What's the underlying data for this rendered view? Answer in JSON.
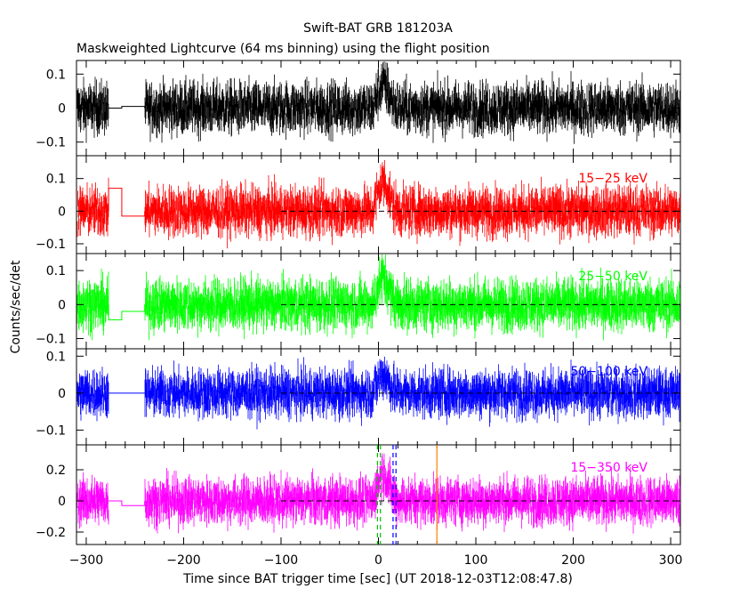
{
  "title": "Swift-BAT GRB 181203A",
  "subtitle": "Maskweighted Lightcurve (64 ms binning) using the flight position",
  "xlabel": "Time since BAT trigger time [sec] (UT 2018-12-03T12:08:47.8)",
  "ylabel": "Counts/sec/det",
  "colors": {
    "panel1": "#000000",
    "panel2": "#ff0000",
    "panel3": "#00ff00",
    "panel4": "#0000ff",
    "panel5": "#ff00ff",
    "marker_green": "#00c000",
    "marker_blue": "#0000ff",
    "marker_orange": "#ff8000"
  },
  "chart_data": {
    "type": "line",
    "xlim": [
      -310,
      310
    ],
    "xticks": [
      -300,
      -200,
      -100,
      0,
      100,
      200,
      300
    ],
    "xtick_labels": [
      "−300",
      "−200",
      "−100",
      "0",
      "100",
      "200",
      "300"
    ],
    "data_gap": [
      -277,
      -240
    ],
    "dashed_zero_from": -100,
    "panels": [
      {
        "name": "",
        "color": "#000000",
        "ylim": [
          -0.14,
          0.14
        ],
        "yticks": [
          -0.1,
          0,
          0.1
        ],
        "ytick_labels": [
          "−0.1",
          "0",
          "0.1"
        ],
        "noise_sigma": 0.035,
        "gap_levels": [
          0.0,
          0.005
        ],
        "burst_peak": 0.07,
        "dashed_zero": false
      },
      {
        "name": "15−25 keV",
        "color": "#ff0000",
        "ylim": [
          -0.13,
          0.17
        ],
        "yticks": [
          -0.1,
          0,
          0.1
        ],
        "ytick_labels": [
          "−0.1",
          "0",
          "0.1"
        ],
        "noise_sigma": 0.035,
        "gap_levels": [
          0.07,
          -0.015
        ],
        "burst_peak": 0.09,
        "dashed_zero": true
      },
      {
        "name": "25−50 keV",
        "color": "#00ff00",
        "ylim": [
          -0.13,
          0.15
        ],
        "yticks": [
          -0.1,
          0,
          0.1
        ],
        "ytick_labels": [
          "−0.1",
          "0",
          "0.1"
        ],
        "noise_sigma": 0.035,
        "gap_levels": [
          -0.045,
          -0.02
        ],
        "burst_peak": 0.08,
        "dashed_zero": true
      },
      {
        "name": "50−100 keV",
        "color": "#0000ff",
        "ylim": [
          -0.14,
          0.12
        ],
        "yticks": [
          -0.1,
          0,
          0.1
        ],
        "ytick_labels": [
          "−0.1",
          "0",
          "0.1"
        ],
        "noise_sigma": 0.03,
        "gap_levels": [
          0.0,
          0.0
        ],
        "burst_peak": 0.05,
        "dashed_zero": true
      },
      {
        "name": "15−350 keV",
        "color": "#ff00ff",
        "ylim": [
          -0.28,
          0.36
        ],
        "yticks": [
          -0.2,
          0,
          0.2
        ],
        "ytick_labels": [
          "−0.2",
          "0",
          "0.2"
        ],
        "noise_sigma": 0.07,
        "gap_levels": [
          0.0,
          -0.03
        ],
        "burst_peak": 0.18,
        "dashed_zero": true
      }
    ],
    "markers": [
      {
        "x": -1,
        "color": "#00c000",
        "style": "dashed"
      },
      {
        "x": 2,
        "color": "#00c000",
        "style": "dashed"
      },
      {
        "x": 15,
        "color": "#0000ff",
        "style": "dashed"
      },
      {
        "x": 18,
        "color": "#0000ff",
        "style": "dashed"
      },
      {
        "x": 60,
        "color": "#ff8000",
        "style": "solid"
      }
    ]
  }
}
